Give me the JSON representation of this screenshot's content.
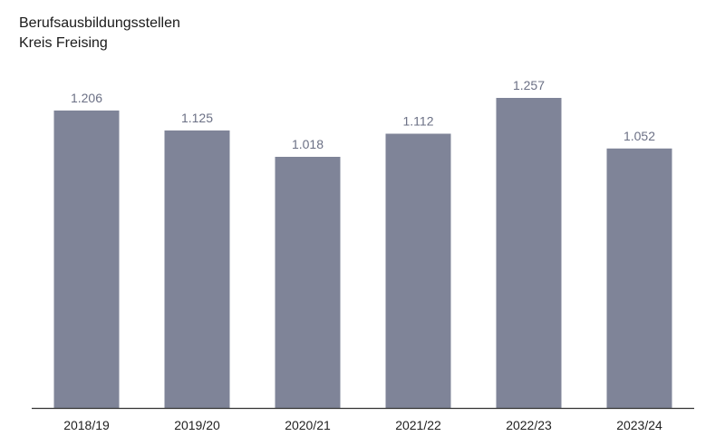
{
  "chart_data": {
    "type": "bar",
    "title": "Berufsausbildungsstellen",
    "subtitle": "Kreis Freising",
    "categories": [
      "2018/19",
      "2019/20",
      "2020/21",
      "2021/22",
      "2022/23",
      "2023/24"
    ],
    "values": [
      1206,
      1125,
      1018,
      1112,
      1257,
      1052
    ],
    "value_labels": [
      "1.206",
      "1.125",
      "1.018",
      "1.112",
      "1.257",
      "1.052"
    ],
    "ylim": [
      0,
      1257
    ],
    "grid": false,
    "legend": "none",
    "colors": {
      "bar": "#7f8498",
      "value_label": "#6b7085",
      "axis": "#333333"
    }
  }
}
